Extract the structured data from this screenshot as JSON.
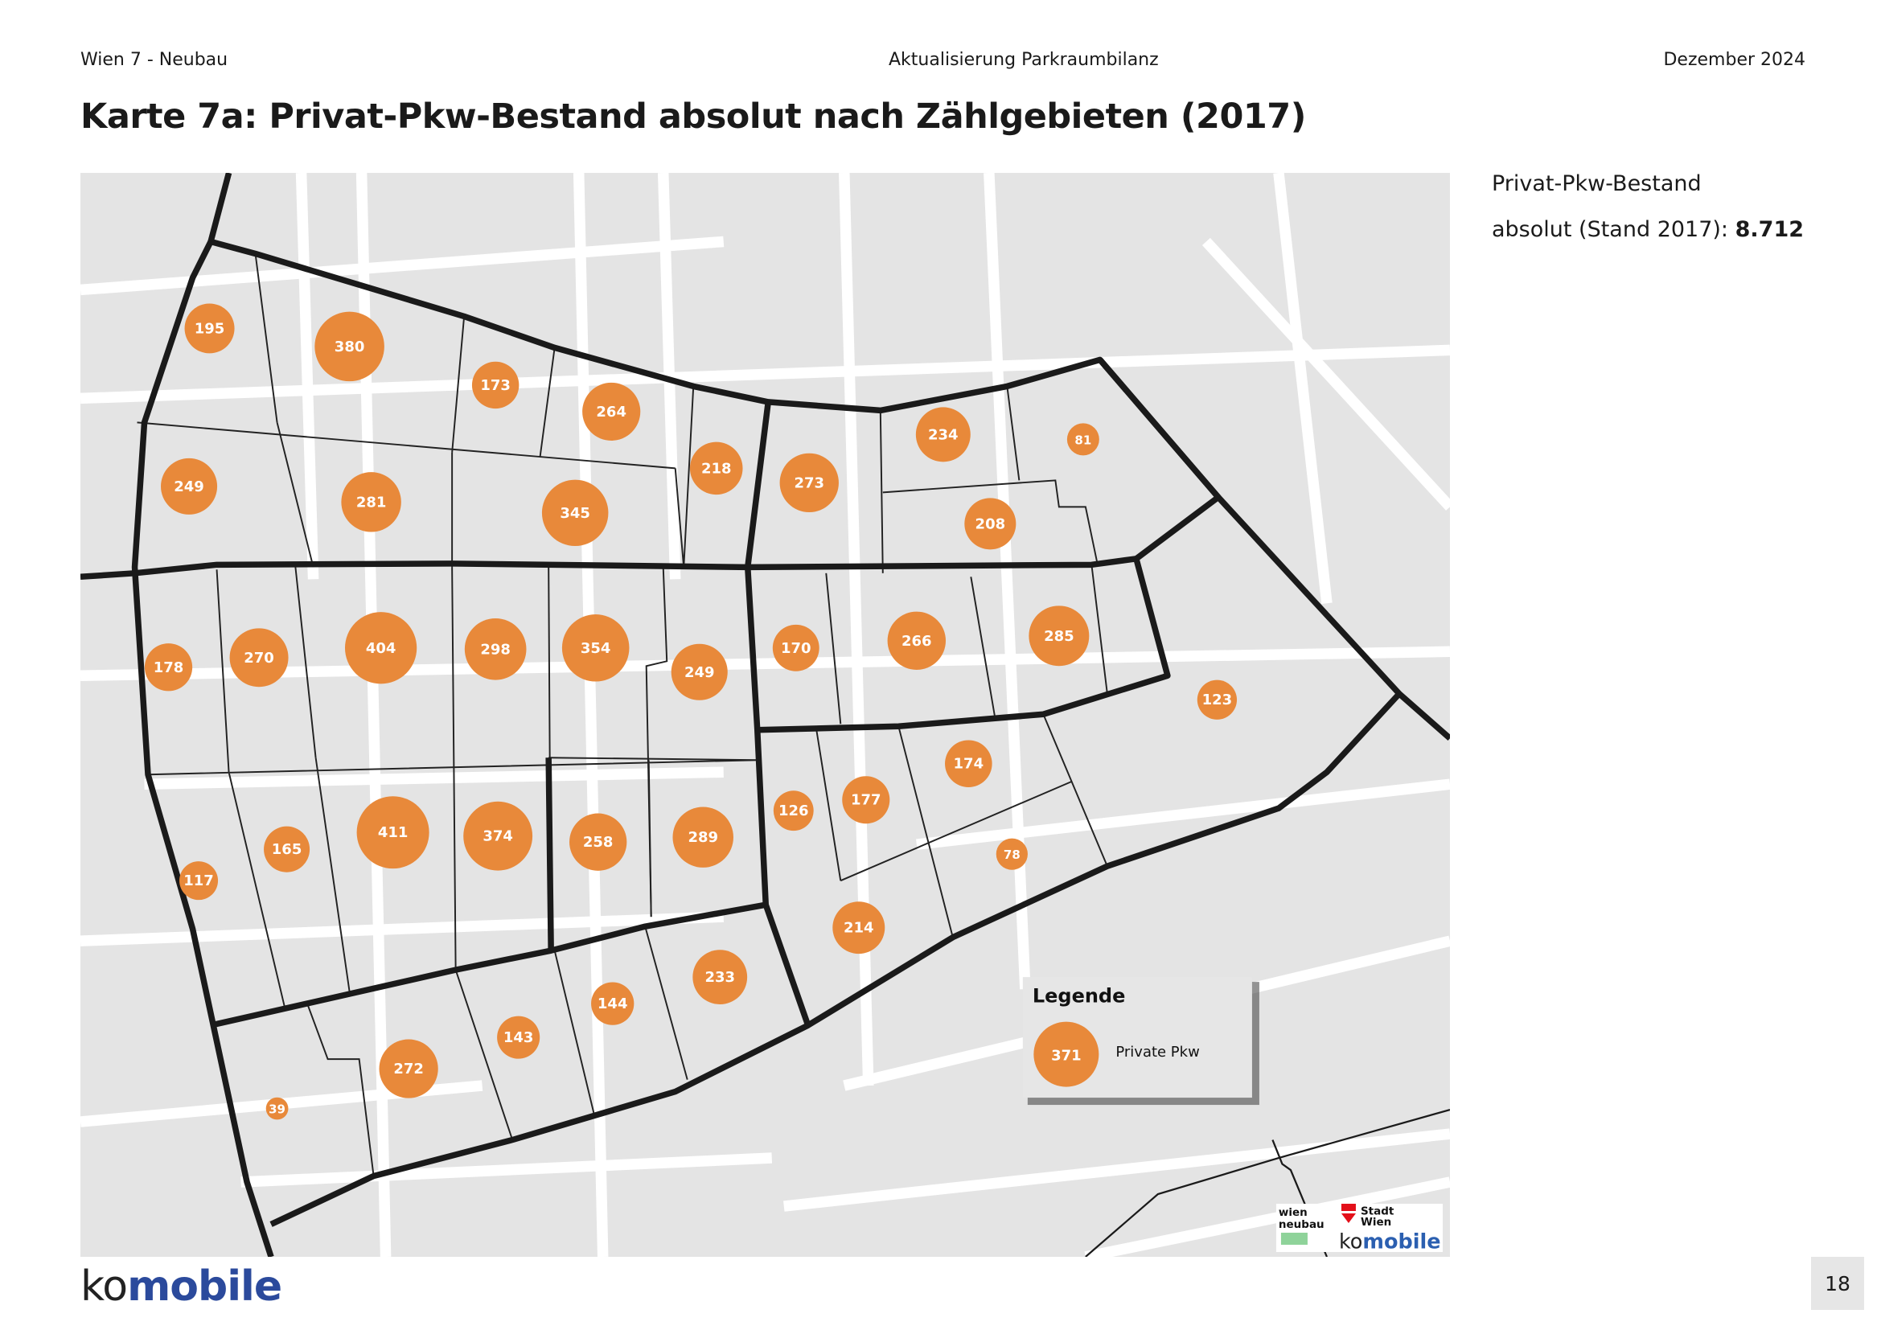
{
  "header": {
    "left": "Wien 7 - Neubau",
    "center": "Aktualisierung Parkraumbilanz",
    "right": "Dezember  2024"
  },
  "title": "Karte 7a: Privat-Pkw-Bestand absolut nach Zählgebieten (2017)",
  "sidebar": {
    "line1": "Privat-Pkw-Bestand",
    "line2_prefix": "absolut (Stand 2017): ",
    "total": "8.712"
  },
  "map": {
    "bubble_color": "#e8893a",
    "values": [
      195,
      380,
      173,
      264,
      218,
      273,
      234,
      81,
      249,
      281,
      345,
      208,
      178,
      270,
      404,
      298,
      354,
      249,
      170,
      266,
      285,
      123,
      174,
      126,
      177,
      165,
      411,
      374,
      258,
      289,
      117,
      78,
      214,
      233,
      144,
      143,
      272,
      39
    ],
    "legend": {
      "title": "Legende",
      "sample_value": "371",
      "label": "Private Pkw"
    },
    "logos": {
      "wien_neubau": "wien neubau",
      "stadt_wien": "Stadt Wien",
      "komobile": "komobile"
    }
  },
  "footer": {
    "logo_ko": "ko",
    "logo_mobile": "mobile",
    "page": "18"
  }
}
